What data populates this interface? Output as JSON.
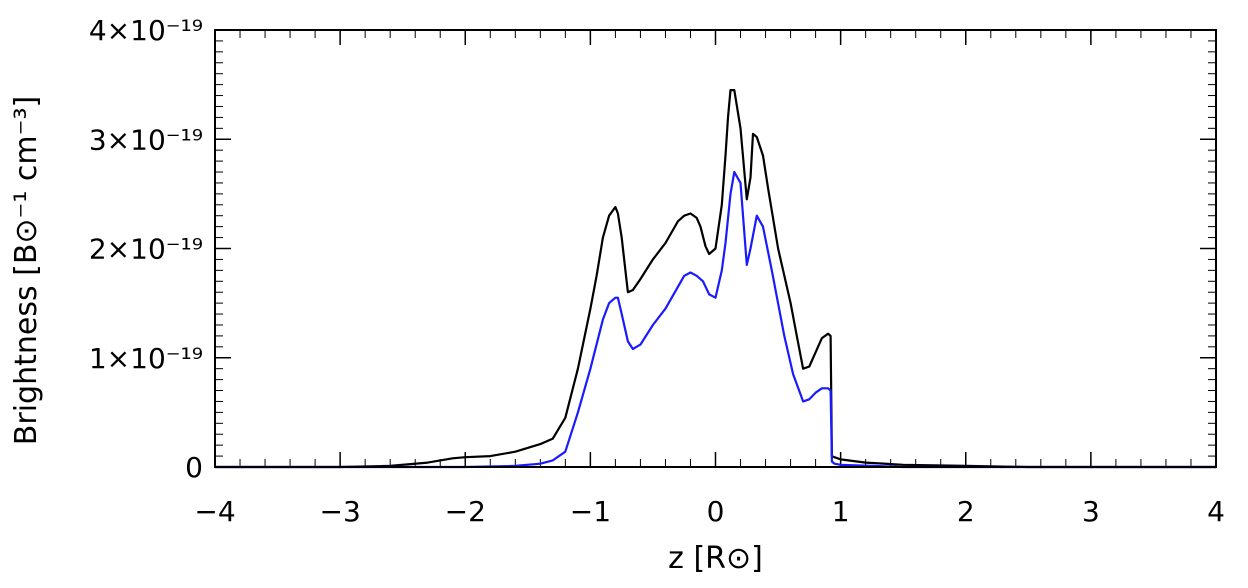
{
  "chart_data": {
    "type": "line",
    "xlabel": "z [R⊙]",
    "ylabel": "Brightness [B⊙⁻¹ cm⁻³]",
    "xlim": [
      -4,
      4
    ],
    "ylim": [
      0,
      4e-19
    ],
    "x_ticks": [
      "−4",
      "−3",
      "−2",
      "−1",
      "0",
      "1",
      "2",
      "3",
      "4"
    ],
    "y_ticks": [
      "0",
      "1×10⁻¹⁹",
      "2×10⁻¹⁹",
      "3×10⁻¹⁹",
      "4×10⁻¹⁹"
    ],
    "grid": false,
    "series": [
      {
        "color": "#000000",
        "x": [
          -4.0,
          -3.0,
          -2.6,
          -2.3,
          -2.1,
          -2.0,
          -1.8,
          -1.6,
          -1.4,
          -1.3,
          -1.2,
          -1.1,
          -1.0,
          -0.95,
          -0.9,
          -0.85,
          -0.8,
          -0.78,
          -0.75,
          -0.72,
          -0.7,
          -0.66,
          -0.6,
          -0.5,
          -0.4,
          -0.3,
          -0.25,
          -0.2,
          -0.15,
          -0.12,
          -0.08,
          -0.05,
          0.0,
          0.05,
          0.08,
          0.1,
          0.12,
          0.15,
          0.2,
          0.25,
          0.28,
          0.3,
          0.33,
          0.38,
          0.42,
          0.5,
          0.6,
          0.65,
          0.7,
          0.75,
          0.8,
          0.85,
          0.9,
          0.92,
          0.93,
          0.95,
          1.0,
          1.2,
          1.5,
          2.0,
          2.5,
          3.0,
          4.0
        ],
        "y": [
          0,
          0,
          1e-21,
          4e-21,
          8e-21,
          9e-21,
          1e-20,
          1.4e-20,
          2.1e-20,
          2.6e-20,
          4.5e-20,
          9e-20,
          1.45e-19,
          1.75e-19,
          2.1e-19,
          2.3e-19,
          2.38e-19,
          2.32e-19,
          2.1e-19,
          1.8e-19,
          1.6e-19,
          1.62e-19,
          1.72e-19,
          1.9e-19,
          2.05e-19,
          2.25e-19,
          2.3e-19,
          2.32e-19,
          2.28e-19,
          2.2e-19,
          2.02e-19,
          1.95e-19,
          2e-19,
          2.4e-19,
          2.85e-19,
          3.2e-19,
          3.45e-19,
          3.45e-19,
          3.1e-19,
          2.45e-19,
          2.65e-19,
          3.05e-19,
          3.02e-19,
          2.85e-19,
          2.55e-19,
          2e-19,
          1.5e-19,
          1.2e-19,
          9e-20,
          9.2e-20,
          1.05e-19,
          1.18e-19,
          1.22e-19,
          1.2e-19,
          1e-20,
          9e-21,
          7e-21,
          4e-21,
          2e-21,
          1e-21,
          0,
          0,
          0
        ]
      },
      {
        "color": "#1a1aff",
        "x": [
          -4.0,
          -2.0,
          -1.6,
          -1.4,
          -1.3,
          -1.2,
          -1.1,
          -1.0,
          -0.9,
          -0.85,
          -0.8,
          -0.78,
          -0.75,
          -0.7,
          -0.66,
          -0.6,
          -0.5,
          -0.4,
          -0.3,
          -0.25,
          -0.2,
          -0.15,
          -0.1,
          -0.05,
          0.0,
          0.05,
          0.08,
          0.12,
          0.15,
          0.2,
          0.25,
          0.28,
          0.33,
          0.38,
          0.45,
          0.55,
          0.62,
          0.7,
          0.75,
          0.8,
          0.85,
          0.9,
          0.92,
          0.93,
          0.95,
          1.0,
          1.5,
          4.0
        ],
        "y": [
          0,
          0,
          1e-21,
          3e-21,
          6e-21,
          1.4e-20,
          5e-20,
          9e-20,
          1.35e-19,
          1.5e-19,
          1.55e-19,
          1.55e-19,
          1.4e-19,
          1.15e-19,
          1.08e-19,
          1.12e-19,
          1.3e-19,
          1.45e-19,
          1.65e-19,
          1.75e-19,
          1.78e-19,
          1.75e-19,
          1.7e-19,
          1.58e-19,
          1.55e-19,
          1.8e-19,
          2.05e-19,
          2.5e-19,
          2.7e-19,
          2.6e-19,
          1.85e-19,
          2e-19,
          2.3e-19,
          2.2e-19,
          1.8e-19,
          1.2e-19,
          8.5e-20,
          6e-20,
          6.2e-20,
          6.8e-20,
          7.2e-20,
          7.2e-20,
          7e-20,
          5e-21,
          3e-21,
          2e-21,
          0,
          0
        ]
      }
    ]
  }
}
